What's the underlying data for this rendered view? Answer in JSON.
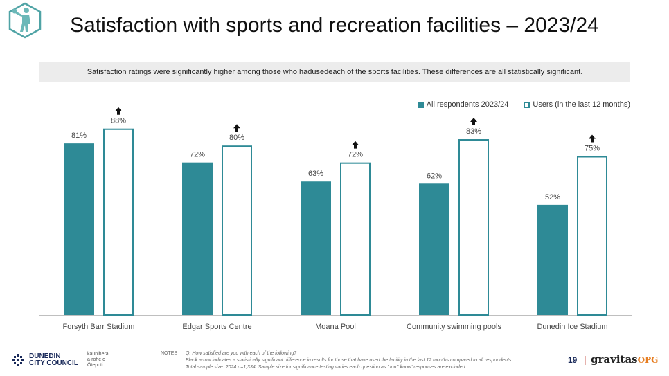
{
  "title": "Satisfaction with sports and recreation facilities – 2023/24",
  "callout": {
    "pre": "Satisfaction ratings were significantly higher among those who had ",
    "underlined": "used",
    "post": " each of the sports facilities. These differences are all statistically significant."
  },
  "colors": {
    "primary": "#2e8a96",
    "arrow": "#111111"
  },
  "chart_data": {
    "type": "bar",
    "categories": [
      "Forsyth Barr Stadium",
      "Edgar Sports Centre",
      "Moana Pool",
      "Community swimming pools",
      "Dunedin Ice Stadium"
    ],
    "series": [
      {
        "name": "All respondents 2023/24",
        "values": [
          81,
          72,
          63,
          62,
          52
        ],
        "labels": [
          "81%",
          "72%",
          "63%",
          "62%",
          "52%"
        ]
      },
      {
        "name": "Users (in the last 12 months)",
        "values": [
          88,
          80,
          72,
          83,
          75
        ],
        "labels": [
          "88%",
          "80%",
          "72%",
          "83%",
          "75%"
        ],
        "significant_higher": [
          true,
          true,
          true,
          true,
          true
        ]
      }
    ],
    "ylim": [
      0,
      100
    ],
    "legend": "top-right",
    "grid": false
  },
  "notes": {
    "label": "NOTES",
    "lines": [
      "Q: How satisfied are you with each of the following?",
      "Black arrow indicates a statistically significant  difference in results for those that have used the facility in the last 12 months  compared to all respondents.",
      "Total sample size: 2024 n=1,334. Sample size for significance testing varies each question as 'don't know' responses are excluded."
    ]
  },
  "footer": {
    "council_name_1": "DUNEDIN",
    "council_name_2": "CITY COUNCIL",
    "maori_1": "kaunihera",
    "maori_2": "a-rohe o",
    "maori_3": "Ōtepoti",
    "page_number": "19",
    "separator": "|",
    "brand": "gravitas",
    "brand_suffix": "OPG"
  },
  "logo_icon": "basketball-player-hexagon-icon"
}
